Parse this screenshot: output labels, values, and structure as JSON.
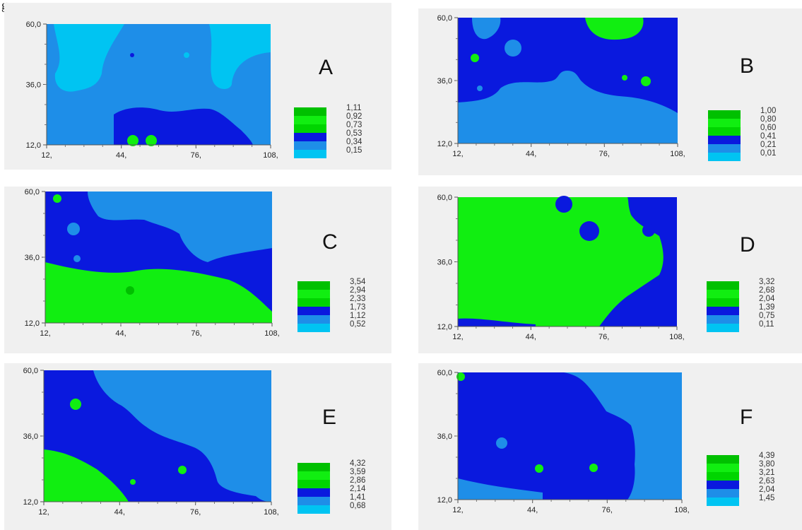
{
  "figure_mark": "g",
  "palette": [
    "#00c4f2",
    "#1e8ee8",
    "#0a19de",
    "#00d500",
    "#11ee11",
    "#00c000"
  ],
  "chart_data": [
    {
      "id": "A",
      "type": "heatmap",
      "x_ticks": [
        "12,",
        "44,",
        "76,",
        "108,"
      ],
      "y_ticks": [
        "60,0",
        "36,0",
        "12,0"
      ],
      "xlim": [
        12,
        108
      ],
      "ylim": [
        12,
        60
      ],
      "legend_levels": [
        "1,11",
        "0,92",
        "0,73",
        "0,53",
        "0,34",
        "0,15"
      ]
    },
    {
      "id": "B",
      "type": "heatmap",
      "x_ticks": [
        "12,",
        "44,",
        "76,",
        "108,"
      ],
      "y_ticks": [
        "60,0",
        "36,0",
        "12,0"
      ],
      "xlim": [
        12,
        108
      ],
      "ylim": [
        12,
        60
      ],
      "legend_levels": [
        "1,00",
        "0,80",
        "0,60",
        "0,41",
        "0,21",
        "0,01"
      ]
    },
    {
      "id": "C",
      "type": "heatmap",
      "x_ticks": [
        "12,",
        "44,",
        "76,",
        "108,"
      ],
      "y_ticks": [
        "60,0",
        "36,0",
        "12,0"
      ],
      "xlim": [
        12,
        108
      ],
      "ylim": [
        12,
        60
      ],
      "legend_levels": [
        "3,54",
        "2,94",
        "2,33",
        "1,73",
        "1,12",
        "0,52"
      ]
    },
    {
      "id": "D",
      "type": "heatmap",
      "x_ticks": [
        "12,",
        "44,",
        "76,",
        "108,"
      ],
      "y_ticks": [
        "60,0",
        "36,0",
        "12,0"
      ],
      "xlim": [
        12,
        108
      ],
      "ylim": [
        12,
        60
      ],
      "legend_levels": [
        "3,32",
        "2,68",
        "2,04",
        "1,39",
        "0,75",
        "0,11"
      ]
    },
    {
      "id": "E",
      "type": "heatmap",
      "x_ticks": [
        "12,",
        "44,",
        "76,",
        "108,"
      ],
      "y_ticks": [
        "60,0",
        "36,0",
        "12,0"
      ],
      "xlim": [
        12,
        108
      ],
      "ylim": [
        12,
        60
      ],
      "legend_levels": [
        "4,32",
        "3,59",
        "2,86",
        "2,14",
        "1,41",
        "0,68"
      ]
    },
    {
      "id": "F",
      "type": "heatmap",
      "x_ticks": [
        "12,",
        "44,",
        "76,",
        "108,"
      ],
      "y_ticks": [
        "60,0",
        "36,0",
        "12,0"
      ],
      "xlim": [
        12,
        108
      ],
      "ylim": [
        12,
        60
      ],
      "legend_levels": [
        "4,39",
        "3,80",
        "3,21",
        "2,63",
        "2,04",
        "1,45"
      ]
    }
  ]
}
